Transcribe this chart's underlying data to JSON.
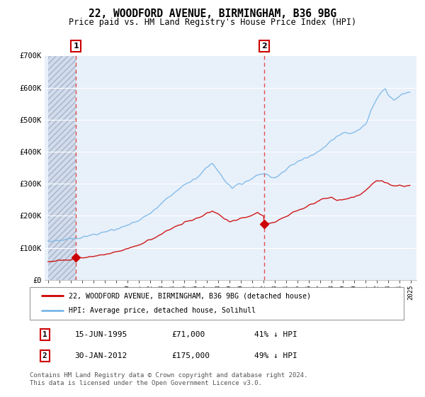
{
  "title": "22, WOODFORD AVENUE, BIRMINGHAM, B36 9BG",
  "subtitle": "Price paid vs. HM Land Registry's House Price Index (HPI)",
  "ylim": [
    0,
    700000
  ],
  "yticks": [
    0,
    100000,
    200000,
    300000,
    400000,
    500000,
    600000,
    700000
  ],
  "ytick_labels": [
    "£0",
    "£100K",
    "£200K",
    "£300K",
    "£400K",
    "£500K",
    "£600K",
    "£700K"
  ],
  "sale1_date": 1995.46,
  "sale1_price": 71000,
  "sale2_date": 2012.08,
  "sale2_price": 175000,
  "sale_color": "#cc0000",
  "hpi_color": "#7ab8e8",
  "vline_color": "#e05050",
  "legend_label1": "22, WOODFORD AVENUE, BIRMINGHAM, B36 9BG (detached house)",
  "legend_label2": "HPI: Average price, detached house, Solihull",
  "table_row1": [
    "1",
    "15-JUN-1995",
    "£71,000",
    "41% ↓ HPI"
  ],
  "table_row2": [
    "2",
    "30-JAN-2012",
    "£175,000",
    "49% ↓ HPI"
  ],
  "footnote": "Contains HM Land Registry data © Crown copyright and database right 2024.\nThis data is licensed under the Open Government Licence v3.0.",
  "xmin": 1993.0,
  "xmax": 2025.5,
  "bg_color": "#dde8f5",
  "chart_bg": "#e8f0fa"
}
